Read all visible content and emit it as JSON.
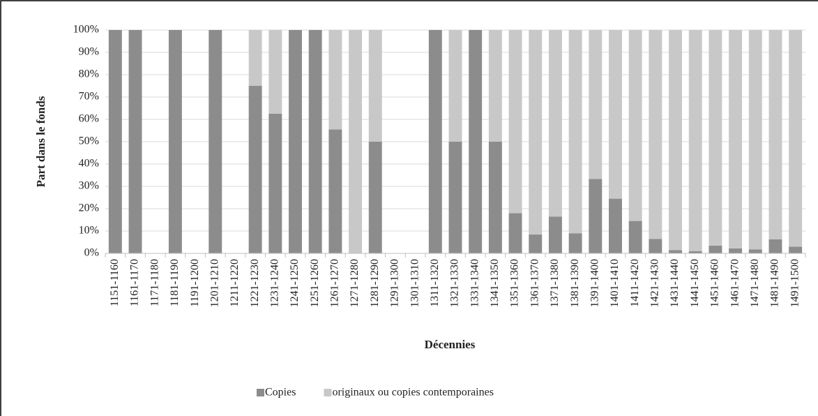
{
  "chart_data": {
    "type": "stacked_bar",
    "x_label": "Décennies",
    "y_label": "Part dans le fonds",
    "categories": [
      "1151-1160",
      "1161-1170",
      "1171-1180",
      "1181-1190",
      "1191-1200",
      "1201-1210",
      "1211-1220",
      "1221-1230",
      "1231-1240",
      "1241-1250",
      "1251-1260",
      "1261-1270",
      "1271-1280",
      "1281-1290",
      "1291-1300",
      "1301-1310",
      "1311-1320",
      "1321-1330",
      "1331-1340",
      "1341-1350",
      "1351-1360",
      "1361-1370",
      "1371-1380",
      "1381-1390",
      "1391-1400",
      "1401-1410",
      "1411-1420",
      "1421-1430",
      "1431-1440",
      "1441-1450",
      "1451-1460",
      "1461-1470",
      "1471-1480",
      "1481-1490",
      "1491-1500"
    ],
    "series": [
      {
        "name": "Copies",
        "color": "#8c8c8c",
        "values": [
          100,
          100,
          0,
          100,
          0,
          100,
          0,
          75,
          62.5,
          100,
          100,
          55.5,
          0,
          50,
          0,
          0,
          100,
          50,
          100,
          50,
          18,
          8.5,
          16.5,
          9,
          33.3,
          24.5,
          14.5,
          6.5,
          1.5,
          1,
          3.5,
          2.2,
          1.8,
          6.3,
          3
        ]
      },
      {
        "name": "originaux ou copies contemporaines",
        "color": "#c8c8c8",
        "values": [
          0,
          0,
          0,
          0,
          0,
          0,
          0,
          25,
          37.5,
          0,
          0,
          44.5,
          100,
          50,
          0,
          0,
          0,
          50,
          0,
          50,
          82,
          91.5,
          83.5,
          91,
          66.7,
          75.5,
          85.5,
          93.5,
          98.5,
          99,
          96.5,
          97.8,
          98.2,
          93.7,
          97
        ]
      }
    ],
    "ylim": [
      0,
      100
    ],
    "yticks": [
      {
        "value": 0,
        "label": "0%"
      },
      {
        "value": 10,
        "label": "10%"
      },
      {
        "value": 20,
        "label": "20%"
      },
      {
        "value": 30,
        "label": "30%"
      },
      {
        "value": 40,
        "label": "40%"
      },
      {
        "value": 50,
        "label": "50%"
      },
      {
        "value": 60,
        "label": "60%"
      },
      {
        "value": 70,
        "label": "70%"
      },
      {
        "value": 80,
        "label": "80%"
      },
      {
        "value": 90,
        "label": "90%"
      },
      {
        "value": 100,
        "label": "100%"
      }
    ],
    "grid": true
  }
}
